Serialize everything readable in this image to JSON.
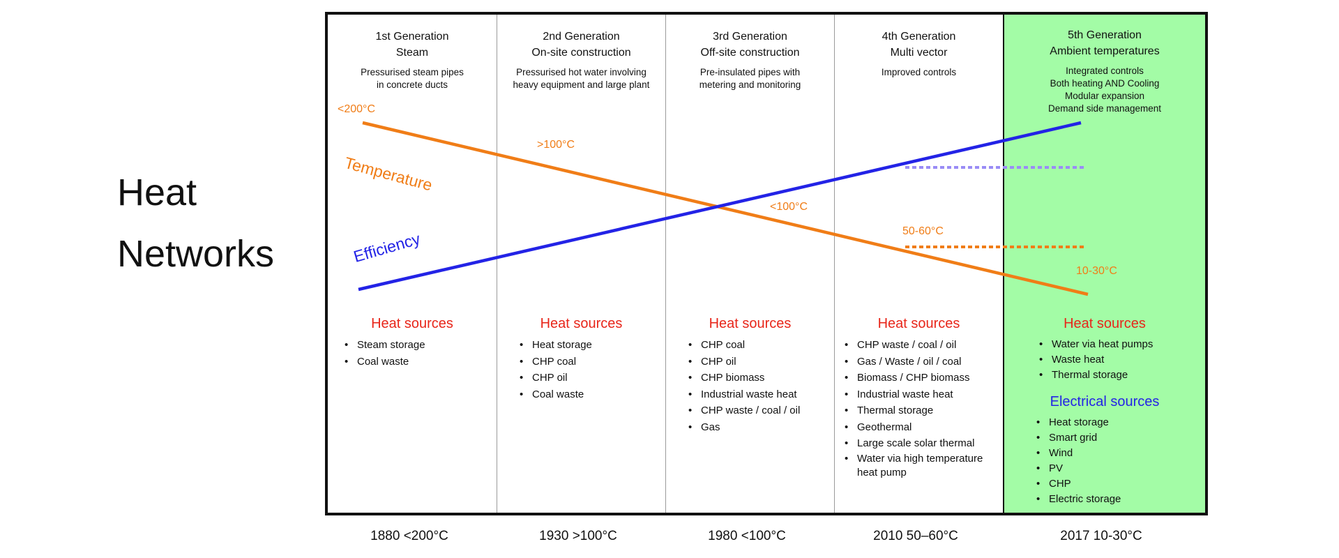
{
  "title": {
    "line1": "Heat",
    "line2": "Networks"
  },
  "colors": {
    "temperature": "#f07d17",
    "efficiency": "#2323e6",
    "heat_sources_heading": "#e8261a",
    "electrical_sources_heading": "#2323e6",
    "highlight_column": "#a3fca6"
  },
  "generations": [
    {
      "title": "1st Generation",
      "subtitle": "Steam",
      "desc_lines": [
        "Pressurised steam pipes",
        "in concrete ducts"
      ],
      "heat_sources": [
        "Steam storage",
        "Coal waste"
      ],
      "year": "1880 <200°C"
    },
    {
      "title": "2nd Generation",
      "subtitle": "On-site construction",
      "desc_lines": [
        "Pressurised hot water involving",
        "heavy equipment and large plant"
      ],
      "heat_sources": [
        "Heat storage",
        "CHP coal",
        "CHP oil",
        "Coal waste"
      ],
      "year": "1930 >100°C"
    },
    {
      "title": "3rd Generation",
      "subtitle": "Off-site construction",
      "desc_lines": [
        "Pre-insulated pipes with",
        "metering and monitoring"
      ],
      "heat_sources": [
        "CHP coal",
        "CHP oil",
        "CHP biomass",
        "Industrial waste heat",
        "CHP waste / coal / oil",
        "Gas"
      ],
      "year": "1980 <100°C"
    },
    {
      "title": "4th Generation",
      "subtitle": "Multi vector",
      "desc_lines": [
        "Improved controls"
      ],
      "heat_sources": [
        "CHP waste / coal / oil",
        "Gas / Waste / oil / coal",
        "Biomass / CHP biomass",
        "Industrial waste heat",
        "Thermal storage",
        "Geothermal",
        "Large scale solar thermal",
        "Water via high temperature heat pump"
      ],
      "year": "2010 50–60°C"
    },
    {
      "title": "5th Generation",
      "subtitle": "Ambient temperatures",
      "desc_lines": [
        "Integrated controls",
        "Both heating AND Cooling",
        "Modular expansion",
        "Demand side management"
      ],
      "heat_sources": [
        "Water via heat pumps",
        "Waste heat",
        "Thermal storage"
      ],
      "electrical_sources": [
        "Heat storage",
        "Smart grid",
        "Wind",
        "PV",
        "CHP",
        "Electric storage"
      ],
      "year": "2017 10-30°C"
    }
  ],
  "heat_sources_heading": "Heat sources",
  "electrical_sources_heading": "Electrical sources",
  "line_labels": {
    "temperature": "Temperature",
    "efficiency": "Efficiency"
  },
  "temperature_labels": [
    "<200°C",
    ">100°C",
    "<100°C",
    "50-60°C",
    "10-30°C"
  ]
}
